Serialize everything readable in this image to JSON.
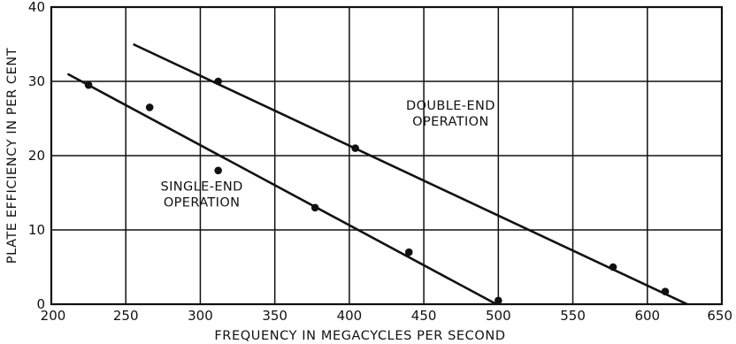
{
  "chart_data": {
    "type": "scatter",
    "title": "",
    "xlabel": "FREQUENCY IN MEGACYCLES PER SECOND",
    "ylabel": "PLATE EFFICIENCY IN PER CENT",
    "xlim": [
      200,
      650
    ],
    "ylim": [
      0,
      40
    ],
    "x_ticks": [
      200,
      250,
      300,
      350,
      400,
      450,
      500,
      550,
      600,
      650
    ],
    "y_ticks": [
      0,
      10,
      20,
      30,
      40
    ],
    "x_tick_labels": [
      "200",
      "250",
      "300",
      "350",
      "400",
      "450",
      "500",
      "550",
      "600",
      "650"
    ],
    "y_tick_labels": [
      "0",
      "10",
      "20",
      "30",
      "40"
    ],
    "grid": true,
    "series": [
      {
        "name": "SINGLE-END OPERATION",
        "points": [
          {
            "x": 225,
            "y": 29.5
          },
          {
            "x": 266,
            "y": 26.5
          },
          {
            "x": 312,
            "y": 18
          },
          {
            "x": 377,
            "y": 13
          },
          {
            "x": 440,
            "y": 7
          },
          {
            "x": 500,
            "y": 0.5
          }
        ],
        "fit_line": [
          {
            "x": 211,
            "y": 31
          },
          {
            "x": 508,
            "y": -1
          }
        ]
      },
      {
        "name": "DOUBLE-END OPERATION",
        "points": [
          {
            "x": 312,
            "y": 30
          },
          {
            "x": 404,
            "y": 21
          },
          {
            "x": 577,
            "y": 5
          },
          {
            "x": 612,
            "y": 1.7
          }
        ],
        "fit_line": [
          {
            "x": 255,
            "y": 35
          },
          {
            "x": 632,
            "y": -0.5
          }
        ]
      }
    ],
    "annotations": [
      {
        "lines": [
          "DOUBLE-END",
          "OPERATION"
        ],
        "x": 468,
        "y_top": 26.2,
        "anchor": "middle"
      },
      {
        "lines": [
          "SINGLE-END",
          "OPERATION"
        ],
        "x": 301,
        "y_top": 15.3,
        "anchor": "middle"
      }
    ]
  }
}
